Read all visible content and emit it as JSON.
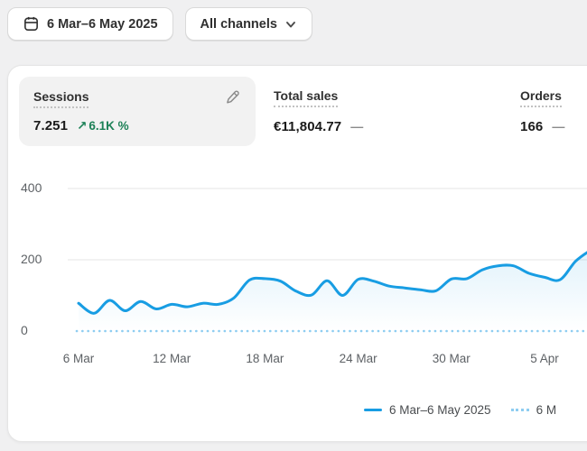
{
  "toolbar": {
    "date_range_label": "6 Mar–6 May 2025",
    "channels_label": "All channels"
  },
  "metrics": {
    "sessions": {
      "label": "Sessions",
      "value": "7.251",
      "change_arrow": "↗",
      "change": "6.1K %"
    },
    "total_sales": {
      "label": "Total sales",
      "value": "€11,804.77",
      "comparison": "—"
    },
    "orders": {
      "label": "166",
      "label_title": "Orders",
      "value": "166",
      "comparison": "—"
    }
  },
  "colors": {
    "line_blue": "#189de3",
    "comparison_blue": "#8ecdf1",
    "success_green": "#1d8157",
    "grid": "#e9eaeb",
    "fill_top": "rgba(24,157,227,0.13)",
    "fill_bottom": "rgba(24,157,227,0)"
  },
  "chart_data": {
    "type": "line",
    "title": "Sessions",
    "xlabel": "",
    "ylabel": "",
    "ylim": [
      0,
      400
    ],
    "y_ticks": [
      0,
      200,
      400
    ],
    "x_tick_labels": [
      "6 Mar",
      "12 Mar",
      "18 Mar",
      "24 Mar",
      "30 Mar",
      "5 Apr"
    ],
    "x_tick_days": [
      0,
      6,
      12,
      18,
      24,
      30
    ],
    "grid": "horizontal",
    "legend_position": "bottom",
    "series": [
      {
        "name": "6 Mar–6 May 2025",
        "style": "solid",
        "color": "#189de3",
        "x_days": [
          0,
          1,
          2,
          3,
          4,
          5,
          6,
          7,
          8,
          9,
          10,
          11,
          12,
          13,
          14,
          15,
          16,
          17,
          18,
          19,
          20,
          21,
          22,
          23,
          24,
          25,
          26,
          27,
          28,
          29,
          30,
          31,
          32,
          33
        ],
        "values": [
          78,
          50,
          86,
          57,
          83,
          62,
          75,
          68,
          78,
          75,
          93,
          143,
          147,
          140,
          112,
          101,
          141,
          100,
          145,
          140,
          126,
          121,
          116,
          113,
          146,
          147,
          172,
          183,
          183,
          162,
          151,
          144,
          196,
          228
        ]
      },
      {
        "name": "6 M",
        "style": "dotted",
        "color": "#8ecdf1",
        "baseline_value": 0
      }
    ]
  }
}
